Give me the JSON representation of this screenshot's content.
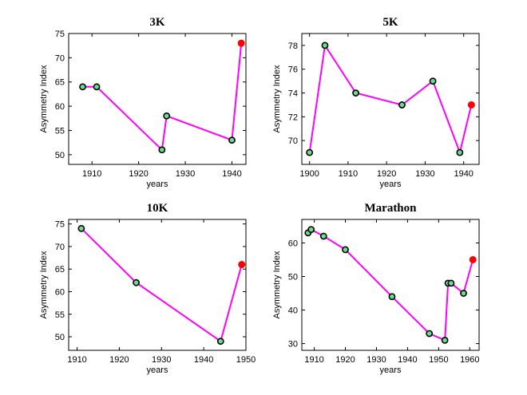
{
  "colors": {
    "line": "#ff00ff",
    "marker_fill": "#66e08a",
    "marker_edge": "#000000",
    "highlight": "#ff0000"
  },
  "chart_data": [
    {
      "type": "line",
      "title": "3K",
      "xlabel": "years",
      "ylabel": "Asymmetry Index",
      "xlim": [
        1905,
        1943
      ],
      "ylim": [
        48,
        75
      ],
      "xticks": [
        1910,
        1920,
        1930,
        1940
      ],
      "yticks": [
        50,
        55,
        60,
        65,
        70,
        75
      ],
      "x": [
        1908,
        1911,
        1925,
        1926,
        1940,
        1942
      ],
      "y": [
        64,
        64,
        51,
        58,
        53,
        73
      ],
      "highlight_last": true
    },
    {
      "type": "line",
      "title": "5K",
      "xlabel": "years",
      "ylabel": "Asymmetry Index",
      "xlim": [
        1898,
        1944
      ],
      "ylim": [
        68,
        79
      ],
      "xticks": [
        1900,
        1910,
        1920,
        1930,
        1940
      ],
      "yticks": [
        70,
        72,
        74,
        76,
        78
      ],
      "x": [
        1900,
        1904,
        1912,
        1924,
        1932,
        1939,
        1942
      ],
      "y": [
        69,
        78,
        74,
        73,
        75,
        69,
        73
      ],
      "highlight_last": true
    },
    {
      "type": "line",
      "title": "10K",
      "xlabel": "years",
      "ylabel": "Asymmetry Index",
      "xlim": [
        1908,
        1950
      ],
      "ylim": [
        47,
        76
      ],
      "xticks": [
        1910,
        1920,
        1930,
        1940,
        1950
      ],
      "yticks": [
        50,
        55,
        60,
        65,
        70,
        75
      ],
      "x": [
        1911,
        1924,
        1944,
        1949
      ],
      "y": [
        74,
        62,
        49,
        66
      ],
      "highlight_last": true
    },
    {
      "type": "line",
      "title": "Marathon",
      "xlabel": "years",
      "ylabel": "Asymmetry Index",
      "xlim": [
        1906,
        1963
      ],
      "ylim": [
        28,
        67
      ],
      "xticks": [
        1910,
        1920,
        1930,
        1940,
        1950,
        1960
      ],
      "yticks": [
        30,
        40,
        50,
        60
      ],
      "x": [
        1908,
        1909,
        1913,
        1920,
        1935,
        1947,
        1952,
        1953,
        1954,
        1958,
        1961
      ],
      "y": [
        63,
        64,
        62,
        58,
        44,
        33,
        31,
        48,
        48,
        45,
        55
      ],
      "highlight_last": true
    }
  ]
}
